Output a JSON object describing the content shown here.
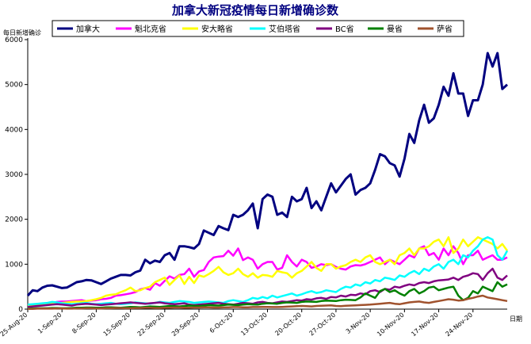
{
  "chart_data": {
    "type": "line",
    "title": "加拿大新冠疫情每日新增确诊数",
    "ylabel": "每日新增确诊",
    "xlabel": "日期",
    "ylim": [
      0,
      6000
    ],
    "yticks": [
      0,
      1000,
      2000,
      3000,
      4000,
      5000,
      6000
    ],
    "grid": false,
    "legend_position": "top",
    "x_tick_labels": [
      "25-Aug-20",
      "1-Sep-20",
      "8-Sep-20",
      "15-Sep-20",
      "22-Sep-20",
      "29-Sep-20",
      "6-Oct-20",
      "13-Oct-20",
      "20-Oct-20",
      "27-Oct-20",
      "3-Nov-20",
      "10-Nov-20",
      "17-Nov-20",
      "24-Nov-20"
    ],
    "series": [
      {
        "name": "加拿大",
        "color": "#000080",
        "values": [
          300,
          420,
          400,
          480,
          520,
          530,
          500,
          470,
          480,
          540,
          600,
          620,
          650,
          640,
          600,
          560,
          620,
          680,
          720,
          760,
          760,
          750,
          820,
          860,
          1100,
          1020,
          1080,
          1050,
          1200,
          1250,
          1100,
          1400,
          1400,
          1380,
          1350,
          1450,
          1750,
          1700,
          1650,
          1850,
          1800,
          1760,
          2100,
          2050,
          2100,
          2200,
          2350,
          1800,
          2450,
          2550,
          2500,
          2100,
          2150,
          2050,
          2500,
          2400,
          2450,
          2700,
          2250,
          2400,
          2200,
          2500,
          2800,
          2600,
          2750,
          2900,
          3000,
          2550,
          2650,
          2700,
          2800,
          3100,
          3450,
          3400,
          3250,
          3200,
          2950,
          3350,
          3900,
          3700,
          4200,
          4550,
          4150,
          4250,
          4550,
          4950,
          4750,
          5250,
          4800,
          4800,
          4300,
          4650,
          4650,
          5000,
          5700,
          5400,
          5700,
          4900,
          5000
        ]
      },
      {
        "name": "魁北克省",
        "color": "#ff00ff",
        "values": [
          90,
          100,
          100,
          110,
          130,
          140,
          160,
          170,
          170,
          180,
          190,
          200,
          180,
          190,
          200,
          220,
          230,
          250,
          300,
          310,
          330,
          350,
          380,
          440,
          470,
          430,
          580,
          520,
          630,
          730,
          680,
          760,
          780,
          900,
          720,
          840,
          870,
          1050,
          1150,
          1170,
          1180,
          1300,
          1190,
          1350,
          1090,
          1150,
          1100,
          900,
          1000,
          1050,
          1050,
          880,
          920,
          1200,
          1050,
          950,
          1100,
          1050,
          920,
          950,
          1000,
          980,
          1000,
          940,
          900,
          880,
          950,
          980,
          970,
          1000,
          1050,
          1100,
          1150,
          1000,
          1100,
          1050,
          1000,
          1100,
          1200,
          1150,
          1350,
          1400,
          1200,
          1250,
          1100,
          1350,
          1200,
          1400,
          1250,
          1000,
          1200,
          1200,
          1300,
          1100,
          1150,
          1200,
          1100,
          1100,
          1150
        ]
      },
      {
        "name": "安大略省",
        "color": "#ffff00",
        "values": [
          80,
          90,
          100,
          110,
          120,
          120,
          130,
          140,
          150,
          160,
          170,
          170,
          180,
          200,
          220,
          250,
          300,
          320,
          330,
          380,
          420,
          480,
          400,
          420,
          470,
          500,
          600,
          650,
          700,
          540,
          650,
          750,
          560,
          720,
          580,
          750,
          720,
          780,
          850,
          940,
          820,
          760,
          800,
          900,
          780,
          720,
          800,
          700,
          760,
          750,
          720,
          850,
          820,
          800,
          700,
          800,
          850,
          950,
          1050,
          920,
          850,
          1000,
          1000,
          900,
          950,
          980,
          1050,
          1100,
          1050,
          1150,
          1200,
          1050,
          1000,
          1050,
          1100,
          1000,
          1200,
          1250,
          1350,
          1200,
          1350,
          1350,
          1400,
          1500,
          1550,
          1400,
          1600,
          1250,
          1350,
          1550,
          1400,
          1500,
          1600,
          1550,
          1500,
          1450,
          1350,
          1450,
          1300
        ]
      },
      {
        "name": "艾伯塔省",
        "color": "#00ffff",
        "values": [
          100,
          110,
          120,
          130,
          140,
          160,
          150,
          130,
          120,
          110,
          120,
          130,
          140,
          120,
          110,
          120,
          130,
          140,
          120,
          110,
          120,
          130,
          150,
          140,
          130,
          120,
          140,
          160,
          150,
          140,
          160,
          180,
          170,
          160,
          140,
          150,
          160,
          170,
          160,
          150,
          140,
          180,
          200,
          180,
          160,
          200,
          250,
          230,
          270,
          240,
          300,
          260,
          290,
          320,
          350,
          300,
          330,
          370,
          400,
          360,
          380,
          420,
          400,
          380,
          450,
          500,
          480,
          550,
          520,
          600,
          570,
          650,
          620,
          700,
          680,
          650,
          750,
          720,
          800,
          850,
          780,
          900,
          850,
          950,
          1000,
          900,
          1050,
          1100,
          1000,
          1200,
          1150,
          1300,
          1400,
          1550,
          1600,
          1550,
          1200,
          1100,
          1300
        ]
      },
      {
        "name": "BC省",
        "color": "#800080",
        "values": [
          50,
          60,
          70,
          80,
          90,
          100,
          110,
          100,
          90,
          80,
          100,
          110,
          120,
          110,
          100,
          90,
          100,
          110,
          120,
          130,
          140,
          150,
          140,
          130,
          120,
          130,
          140,
          150,
          130,
          120,
          110,
          120,
          130,
          100,
          90,
          100,
          110,
          120,
          130,
          140,
          120,
          110,
          100,
          120,
          140,
          130,
          120,
          150,
          160,
          140,
          130,
          150,
          170,
          160,
          180,
          200,
          190,
          220,
          210,
          240,
          250,
          230,
          270,
          260,
          300,
          280,
          320,
          310,
          350,
          330,
          400,
          420,
          380,
          450,
          430,
          500,
          480,
          520,
          550,
          530,
          580,
          600,
          580,
          620,
          640,
          650,
          660,
          700,
          650,
          720,
          750,
          800,
          780,
          650,
          800,
          900,
          700,
          650,
          750
        ]
      },
      {
        "name": "曼省",
        "color": "#008000",
        "values": [
          10,
          15,
          20,
          20,
          20,
          25,
          25,
          20,
          20,
          25,
          30,
          30,
          35,
          35,
          30,
          30,
          40,
          40,
          35,
          30,
          40,
          50,
          45,
          40,
          50,
          60,
          55,
          50,
          60,
          70,
          65,
          60,
          70,
          80,
          75,
          70,
          80,
          90,
          85,
          80,
          90,
          100,
          95,
          90,
          100,
          110,
          105,
          100,
          120,
          130,
          125,
          120,
          140,
          150,
          145,
          140,
          160,
          170,
          165,
          160,
          180,
          190,
          185,
          180,
          200,
          210,
          205,
          200,
          260,
          350,
          300,
          250,
          400,
          450,
          380,
          420,
          350,
          300,
          400,
          450,
          350,
          400,
          480,
          500,
          420,
          450,
          480,
          500,
          300,
          200,
          250,
          400,
          350,
          500,
          450,
          400,
          600,
          500,
          550
        ]
      },
      {
        "name": "萨省",
        "color": "#a0522d",
        "values": [
          5,
          5,
          10,
          10,
          10,
          10,
          15,
          15,
          10,
          10,
          15,
          15,
          20,
          20,
          15,
          15,
          20,
          20,
          25,
          25,
          20,
          20,
          25,
          25,
          30,
          30,
          25,
          25,
          30,
          30,
          35,
          35,
          30,
          30,
          35,
          35,
          40,
          40,
          35,
          35,
          40,
          40,
          45,
          45,
          40,
          40,
          45,
          45,
          50,
          50,
          45,
          45,
          50,
          55,
          60,
          65,
          70,
          65,
          60,
          70,
          75,
          80,
          85,
          70,
          65,
          75,
          80,
          85,
          90,
          95,
          100,
          110,
          120,
          130,
          140,
          120,
          110,
          130,
          150,
          160,
          170,
          150,
          140,
          160,
          180,
          200,
          220,
          210,
          190,
          200,
          230,
          250,
          280,
          300,
          260,
          240,
          220,
          200,
          180
        ]
      }
    ]
  }
}
